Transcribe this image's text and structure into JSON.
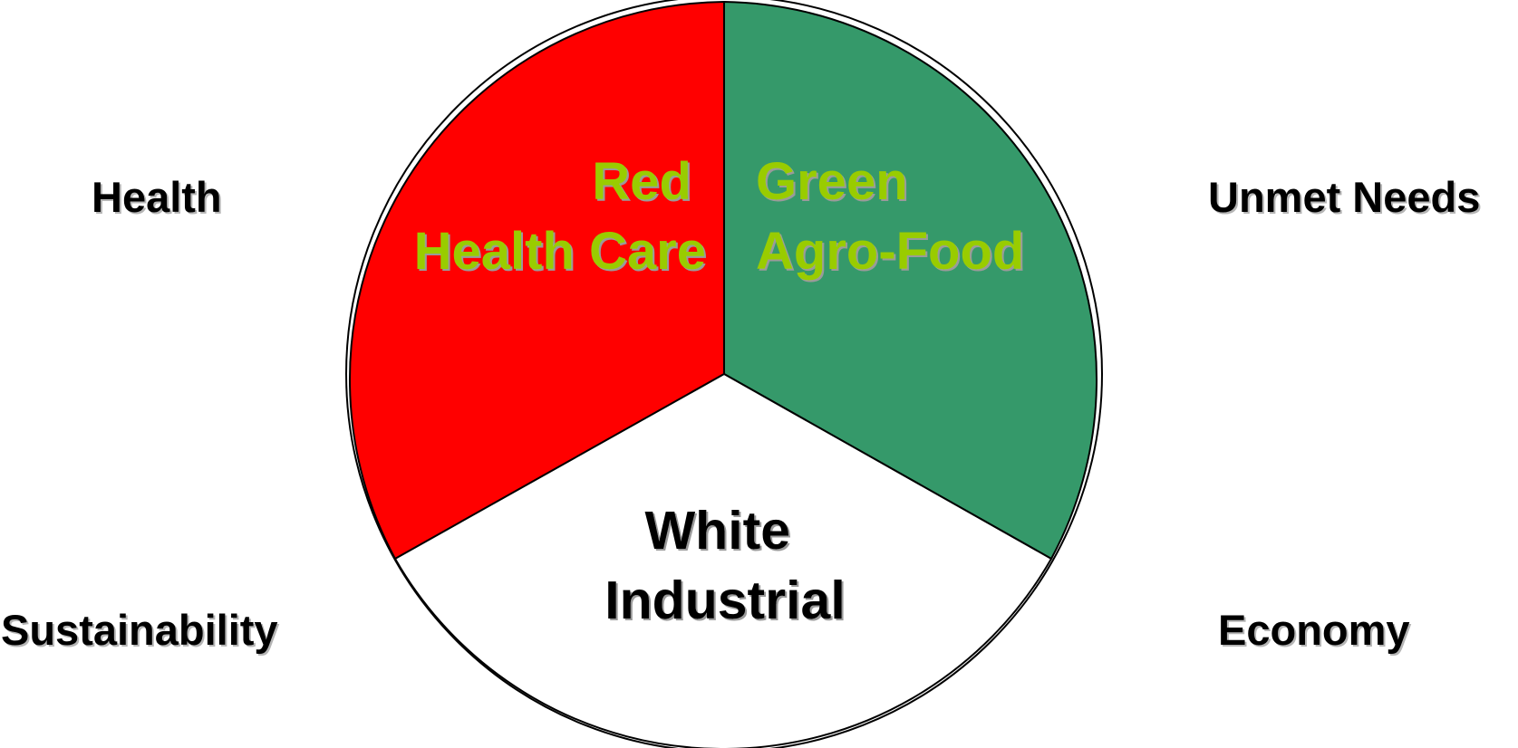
{
  "colors": {
    "red_segment": "#ff0000",
    "green_segment": "#35996a",
    "white_segment": "#ffffff",
    "segment_label_lime": "#99cc00",
    "outline": "#000000",
    "text_shadow": "#b5b5b5"
  },
  "segments": {
    "red": {
      "line1": "Red",
      "line2": "Health Care"
    },
    "green": {
      "line1": "Green",
      "line2": "Agro-Food"
    },
    "white": {
      "line1": "White",
      "line2": "Industrial"
    }
  },
  "corner_labels": {
    "top_left": "Health",
    "top_right": "Unmet Needs",
    "bottom_left": "Sustainability",
    "bottom_right": "Economy"
  }
}
